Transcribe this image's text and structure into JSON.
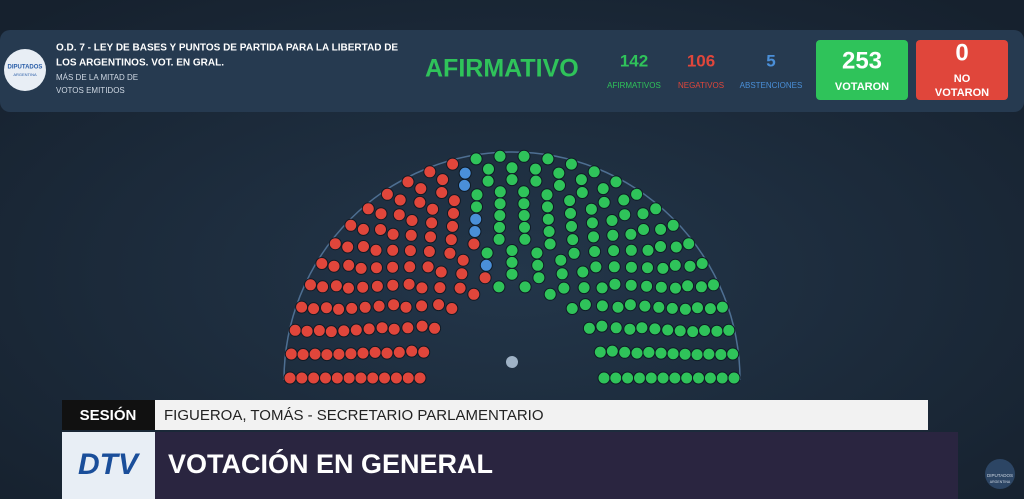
{
  "header": {
    "logo_text": "DIPUTADOS",
    "logo_sub": "ARGENTINA",
    "title_lines": [
      "O.D. 7 - LEY DE BASES Y PUNTOS DE PARTIDA PARA LA LIBERTAD DE",
      "LOS ARGENTINOS. VOT. EN GRAL."
    ],
    "majority_lines": [
      "MÁS DE LA MITAD DE",
      "VOTOS EMITIDOS"
    ],
    "result": "AFIRMATIVO",
    "counts": [
      {
        "value": 142,
        "label": "AFIRMATIVOS",
        "color": "#2fc35a"
      },
      {
        "value": 106,
        "label": "NEGATIVOS",
        "color": "#e0463b"
      },
      {
        "value": 5,
        "label": "ABSTENCIONES",
        "color": "#4a8fd8"
      }
    ],
    "voted": {
      "value": 253,
      "label": "VOTARON"
    },
    "not_voted": {
      "value": 0,
      "label_lines": [
        "NO",
        "VOTARON"
      ]
    }
  },
  "lower_third": {
    "section": "SESIÓN",
    "speaker": "FIGUEROA, TOMÁS - SECRETARIO PARLAMENTARIO",
    "channel": "DTV",
    "headline": "VOTACIÓN EN GENERAL"
  },
  "corner_logo": {
    "text": "DIPUTADOS",
    "sub": "ARGENTINA"
  }
}
